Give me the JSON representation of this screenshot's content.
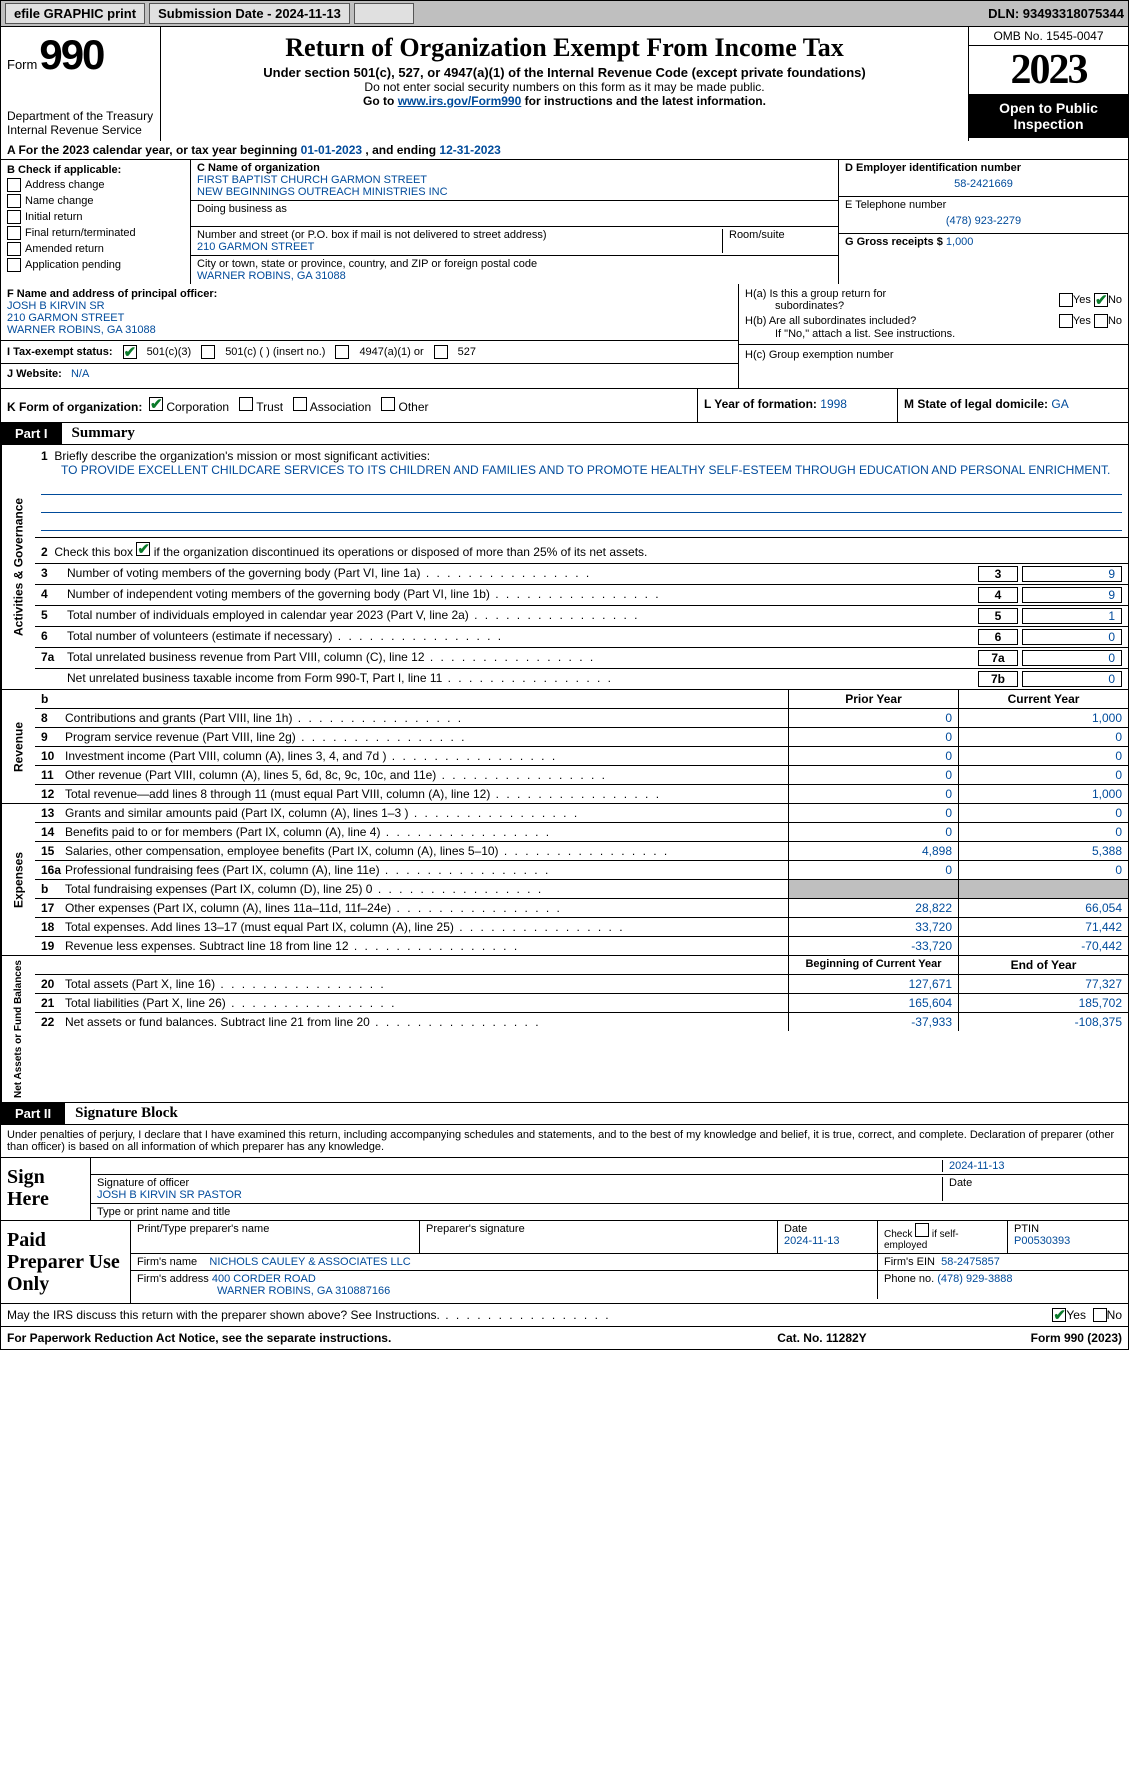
{
  "topbar": {
    "efile_label": "efile GRAPHIC print",
    "submission_label": "Submission Date - 2024-11-13",
    "dln_label": "DLN: 93493318075344"
  },
  "header": {
    "form_word": "Form",
    "form_number": "990",
    "dept": "Department of the Treasury",
    "irs": "Internal Revenue Service",
    "title": "Return of Organization Exempt From Income Tax",
    "sub1": "Under section 501(c), 527, or 4947(a)(1) of the Internal Revenue Code (except private foundations)",
    "sub2": "Do not enter social security numbers on this form as it may be made public.",
    "sub3_pre": "Go to ",
    "sub3_link": "www.irs.gov/Form990",
    "sub3_post": " for instructions and the latest information.",
    "omb": "OMB No. 1545-0047",
    "year": "2023",
    "inspection": "Open to Public Inspection"
  },
  "section_a": {
    "text_pre": "A For the 2023 calendar year, or tax year beginning ",
    "begin": "01-01-2023",
    "mid": " , and ending ",
    "end": "12-31-2023"
  },
  "col_b": {
    "label": "B Check if applicable:",
    "items": [
      "Address change",
      "Name change",
      "Initial return",
      "Final return/terminated",
      "Amended return",
      "Application pending"
    ]
  },
  "col_c": {
    "name_label": "C Name of organization",
    "name1": "FIRST BAPTIST CHURCH GARMON STREET",
    "name2": "NEW BEGINNINGS OUTREACH MINISTRIES INC",
    "dba_label": "Doing business as",
    "addr_label": "Number and street (or P.O. box if mail is not delivered to street address)",
    "room_label": "Room/suite",
    "street": "210 GARMON STREET",
    "city_label": "City or town, state or province, country, and ZIP or foreign postal code",
    "city": "WARNER ROBINS, GA  31088"
  },
  "col_d": {
    "ein_label": "D Employer identification number",
    "ein": "58-2421669",
    "phone_label": "E Telephone number",
    "phone": "(478) 923-2279",
    "gross_label": "G Gross receipts $",
    "gross": "1,000"
  },
  "row_f": {
    "label": "F Name and address of principal officer:",
    "name": "JOSH B KIRVIN SR",
    "street": "210 GARMON STREET",
    "city": "WARNER ROBINS, GA  31088",
    "i_label": "I  Tax-exempt status:",
    "i_501c3": "501(c)(3)",
    "i_501c": "501(c) (  ) (insert no.)",
    "i_4947": "4947(a)(1) or",
    "i_527": "527",
    "j_label": "J  Website:",
    "j_value": "N/A"
  },
  "col_h": {
    "ha_label": "H(a)  Is this a group return for",
    "ha_sub": "subordinates?",
    "hb_label": "H(b)  Are all subordinates included?",
    "hb_note": "If \"No,\" attach a list. See instructions.",
    "hc_label": "H(c)  Group exemption number",
    "yes": "Yes",
    "no": "No"
  },
  "row_klm": {
    "k_label": "K Form of organization:",
    "k_corp": "Corporation",
    "k_trust": "Trust",
    "k_assoc": "Association",
    "k_other": "Other",
    "l_label": "L Year of formation:",
    "l_value": "1998",
    "m_label": "M State of legal domicile:",
    "m_value": "GA"
  },
  "part1": {
    "tab": "Part I",
    "title": "Summary"
  },
  "activities": {
    "vlabel": "Activities & Governance",
    "line1_label": "Briefly describe the organization's mission or most significant activities:",
    "mission": "TO PROVIDE EXCELLENT CHILDCARE SERVICES TO ITS CHILDREN AND FAMILIES AND TO PROMOTE HEALTHY SELF-ESTEEM THROUGH EDUCATION AND PERSONAL ENRICHMENT.",
    "line2": "Check this box       if the organization discontinued its operations or disposed of more than 25% of its net assets.",
    "rows": [
      {
        "n": "3",
        "desc": "Number of voting members of the governing body (Part VI, line 1a)",
        "box": "3",
        "val": "9"
      },
      {
        "n": "4",
        "desc": "Number of independent voting members of the governing body (Part VI, line 1b)",
        "box": "4",
        "val": "9"
      },
      {
        "n": "5",
        "desc": "Total number of individuals employed in calendar year 2023 (Part V, line 2a)",
        "box": "5",
        "val": "1"
      },
      {
        "n": "6",
        "desc": "Total number of volunteers (estimate if necessary)",
        "box": "6",
        "val": "0"
      },
      {
        "n": "7a",
        "desc": "Total unrelated business revenue from Part VIII, column (C), line 12",
        "box": "7a",
        "val": "0"
      },
      {
        "n": "",
        "desc": "Net unrelated business taxable income from Form 990-T, Part I, line 11",
        "box": "7b",
        "val": "0"
      }
    ]
  },
  "revenue": {
    "vlabel": "Revenue",
    "head_prior": "Prior Year",
    "head_current": "Current Year",
    "rows": [
      {
        "n": "8",
        "desc": "Contributions and grants (Part VIII, line 1h)",
        "p": "0",
        "c": "1,000"
      },
      {
        "n": "9",
        "desc": "Program service revenue (Part VIII, line 2g)",
        "p": "0",
        "c": "0"
      },
      {
        "n": "10",
        "desc": "Investment income (Part VIII, column (A), lines 3, 4, and 7d )",
        "p": "0",
        "c": "0"
      },
      {
        "n": "11",
        "desc": "Other revenue (Part VIII, column (A), lines 5, 6d, 8c, 9c, 10c, and 11e)",
        "p": "0",
        "c": "0"
      },
      {
        "n": "12",
        "desc": "Total revenue—add lines 8 through 11 (must equal Part VIII, column (A), line 12)",
        "p": "0",
        "c": "1,000"
      }
    ]
  },
  "expenses": {
    "vlabel": "Expenses",
    "rows": [
      {
        "n": "13",
        "desc": "Grants and similar amounts paid (Part IX, column (A), lines 1–3 )",
        "p": "0",
        "c": "0"
      },
      {
        "n": "14",
        "desc": "Benefits paid to or for members (Part IX, column (A), line 4)",
        "p": "0",
        "c": "0"
      },
      {
        "n": "15",
        "desc": "Salaries, other compensation, employee benefits (Part IX, column (A), lines 5–10)",
        "p": "4,898",
        "c": "5,388"
      },
      {
        "n": "16a",
        "desc": "Professional fundraising fees (Part IX, column (A), line 11e)",
        "p": "0",
        "c": "0"
      },
      {
        "n": "b",
        "desc": "Total fundraising expenses (Part IX, column (D), line 25) 0",
        "p": "",
        "c": "",
        "shaded": true
      },
      {
        "n": "17",
        "desc": "Other expenses (Part IX, column (A), lines 11a–11d, 11f–24e)",
        "p": "28,822",
        "c": "66,054"
      },
      {
        "n": "18",
        "desc": "Total expenses. Add lines 13–17 (must equal Part IX, column (A), line 25)",
        "p": "33,720",
        "c": "71,442"
      },
      {
        "n": "19",
        "desc": "Revenue less expenses. Subtract line 18 from line 12",
        "p": "-33,720",
        "c": "-70,442"
      }
    ]
  },
  "netassets": {
    "vlabel": "Net Assets or Fund Balances",
    "head_prior": "Beginning of Current Year",
    "head_current": "End of Year",
    "rows": [
      {
        "n": "20",
        "desc": "Total assets (Part X, line 16)",
        "p": "127,671",
        "c": "77,327"
      },
      {
        "n": "21",
        "desc": "Total liabilities (Part X, line 26)",
        "p": "165,604",
        "c": "185,702"
      },
      {
        "n": "22",
        "desc": "Net assets or fund balances. Subtract line 21 from line 20",
        "p": "-37,933",
        "c": "-108,375"
      }
    ]
  },
  "part2": {
    "tab": "Part II",
    "title": "Signature Block",
    "declaration": "Under penalties of perjury, I declare that I have examined this return, including accompanying schedules and statements, and to the best of my knowledge and belief, it is true, correct, and complete. Declaration of preparer (other than officer) is based on all information of which preparer has any knowledge."
  },
  "sign": {
    "label": "Sign Here",
    "sig_label": "Signature of officer",
    "date": "2024-11-13",
    "name": "JOSH B KIRVIN SR  PASTOR",
    "name_label": "Type or print name and title"
  },
  "preparer": {
    "label": "Paid Preparer Use Only",
    "name_label": "Print/Type preparer's name",
    "sig_label": "Preparer's signature",
    "date_label": "Date",
    "date": "2024-11-13",
    "check_label": "Check         if self-employed",
    "ptin_label": "PTIN",
    "ptin": "P00530393",
    "firm_name_label": "Firm's name",
    "firm_name": "NICHOLS CAULEY & ASSOCIATES LLC",
    "firm_ein_label": "Firm's EIN",
    "firm_ein": "58-2475857",
    "firm_addr_label": "Firm's address",
    "firm_addr1": "400 CORDER ROAD",
    "firm_addr2": "WARNER ROBINS, GA  310887166",
    "phone_label": "Phone no.",
    "phone": "(478) 929-3888"
  },
  "discuss": {
    "text": "May the IRS discuss this return with the preparer shown above? See Instructions.",
    "yes": "Yes",
    "no": "No"
  },
  "footer": {
    "left": "For Paperwork Reduction Act Notice, see the separate instructions.",
    "mid": "Cat. No. 11282Y",
    "right": "Form 990 (2023)"
  }
}
